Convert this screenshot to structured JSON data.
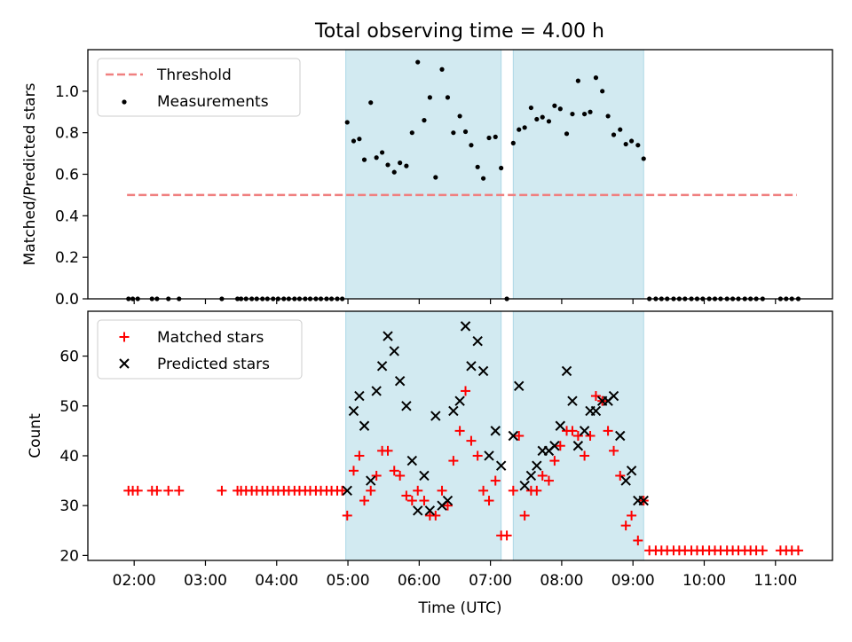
{
  "title": "Total observing time = 4.00 h",
  "colors": {
    "threshold": "#f08080",
    "measurements": "#000000",
    "matched": "#ff0000",
    "predicted": "#000000",
    "shade": "#add8e6"
  },
  "chart_data": [
    {
      "type": "scatter",
      "ylabel": "Matched/Predicted stars",
      "ylim": [
        0,
        1.2
      ],
      "yticks": [
        0.0,
        0.2,
        0.4,
        0.6,
        0.8,
        1.0
      ],
      "ytick_labels": [
        "0.0",
        "0.2",
        "0.4",
        "0.6",
        "0.8",
        "1.0"
      ],
      "xlim_hours": [
        1.35,
        11.8
      ],
      "shaded_intervals_hours": [
        [
          4.97,
          7.15
        ],
        [
          7.32,
          9.15
        ]
      ],
      "legend": {
        "placement": "upper-left",
        "entries": [
          "Threshold",
          "Measurements"
        ]
      },
      "series": [
        {
          "name": "Threshold",
          "kind": "dashed-line",
          "x_hours": [
            1.9,
            11.3
          ],
          "values": [
            0.5,
            0.5
          ]
        },
        {
          "name": "Measurements",
          "kind": "dots",
          "points": [
            [
              1.92,
              0
            ],
            [
              1.98,
              0
            ],
            [
              2.05,
              0
            ],
            [
              2.25,
              0
            ],
            [
              2.32,
              0
            ],
            [
              2.48,
              0
            ],
            [
              2.63,
              0
            ],
            [
              3.23,
              0
            ],
            [
              3.45,
              0
            ],
            [
              3.5,
              0
            ],
            [
              3.57,
              0
            ],
            [
              3.65,
              0
            ],
            [
              3.72,
              0
            ],
            [
              3.8,
              0
            ],
            [
              3.87,
              0
            ],
            [
              3.95,
              0
            ],
            [
              4.02,
              0
            ],
            [
              4.1,
              0
            ],
            [
              4.17,
              0
            ],
            [
              4.25,
              0
            ],
            [
              4.32,
              0
            ],
            [
              4.4,
              0
            ],
            [
              4.47,
              0
            ],
            [
              4.55,
              0
            ],
            [
              4.62,
              0
            ],
            [
              4.7,
              0
            ],
            [
              4.77,
              0
            ],
            [
              4.85,
              0
            ],
            [
              4.92,
              0
            ],
            [
              4.99,
              0.85
            ],
            [
              5.08,
              0.76
            ],
            [
              5.16,
              0.77
            ],
            [
              5.23,
              0.67
            ],
            [
              5.32,
              0.945
            ],
            [
              5.4,
              0.68
            ],
            [
              5.48,
              0.705
            ],
            [
              5.56,
              0.645
            ],
            [
              5.65,
              0.61
            ],
            [
              5.73,
              0.655
            ],
            [
              5.82,
              0.64
            ],
            [
              5.9,
              0.8
            ],
            [
              5.98,
              1.14
            ],
            [
              6.07,
              0.86
            ],
            [
              6.15,
              0.97
            ],
            [
              6.23,
              0.585
            ],
            [
              6.32,
              1.105
            ],
            [
              6.4,
              0.97
            ],
            [
              6.48,
              0.8
            ],
            [
              6.57,
              0.88
            ],
            [
              6.65,
              0.805
            ],
            [
              6.73,
              0.74
            ],
            [
              6.82,
              0.635
            ],
            [
              6.9,
              0.58
            ],
            [
              6.98,
              0.775
            ],
            [
              7.07,
              0.78
            ],
            [
              7.15,
              0.63
            ],
            [
              7.23,
              0
            ],
            [
              7.32,
              0.75
            ],
            [
              7.4,
              0.815
            ],
            [
              7.48,
              0.825
            ],
            [
              7.57,
              0.92
            ],
            [
              7.65,
              0.865
            ],
            [
              7.73,
              0.875
            ],
            [
              7.82,
              0.855
            ],
            [
              7.9,
              0.93
            ],
            [
              7.98,
              0.915
            ],
            [
              8.07,
              0.795
            ],
            [
              8.15,
              0.89
            ],
            [
              8.23,
              1.05
            ],
            [
              8.32,
              0.89
            ],
            [
              8.4,
              0.9
            ],
            [
              8.48,
              1.065
            ],
            [
              8.57,
              1.0
            ],
            [
              8.65,
              0.88
            ],
            [
              8.73,
              0.79
            ],
            [
              8.82,
              0.815
            ],
            [
              8.9,
              0.745
            ],
            [
              8.98,
              0.76
            ],
            [
              9.07,
              0.74
            ],
            [
              9.15,
              0.675
            ],
            [
              9.23,
              0
            ],
            [
              9.32,
              0
            ],
            [
              9.4,
              0
            ],
            [
              9.48,
              0
            ],
            [
              9.57,
              0
            ],
            [
              9.65,
              0
            ],
            [
              9.73,
              0
            ],
            [
              9.82,
              0
            ],
            [
              9.9,
              0
            ],
            [
              9.98,
              0
            ],
            [
              10.07,
              0
            ],
            [
              10.15,
              0
            ],
            [
              10.23,
              0
            ],
            [
              10.32,
              0
            ],
            [
              10.4,
              0
            ],
            [
              10.48,
              0
            ],
            [
              10.57,
              0
            ],
            [
              10.65,
              0
            ],
            [
              10.73,
              0
            ],
            [
              10.82,
              0
            ],
            [
              11.07,
              0
            ],
            [
              11.15,
              0
            ],
            [
              11.23,
              0
            ],
            [
              11.32,
              0
            ]
          ]
        }
      ]
    },
    {
      "type": "scatter",
      "ylabel": "Count",
      "xlabel": "Time (UTC)",
      "ylim": [
        19,
        69
      ],
      "yticks": [
        20,
        30,
        40,
        50,
        60
      ],
      "ytick_labels": [
        "20",
        "30",
        "40",
        "50",
        "60"
      ],
      "xlim_hours": [
        1.35,
        11.8
      ],
      "xticks_hours": [
        2,
        3,
        4,
        5,
        6,
        7,
        8,
        9,
        10,
        11
      ],
      "xtick_labels": [
        "02:00",
        "03:00",
        "04:00",
        "05:00",
        "06:00",
        "07:00",
        "08:00",
        "09:00",
        "10:00",
        "11:00"
      ],
      "shaded_intervals_hours": [
        [
          4.97,
          7.15
        ],
        [
          7.32,
          9.15
        ]
      ],
      "legend": {
        "placement": "upper-left",
        "entries": [
          "Matched stars",
          "Predicted stars"
        ]
      },
      "series": [
        {
          "name": "Matched stars",
          "marker": "plus",
          "points": [
            [
              1.92,
              33
            ],
            [
              1.98,
              33
            ],
            [
              2.05,
              33
            ],
            [
              2.25,
              33
            ],
            [
              2.32,
              33
            ],
            [
              2.48,
              33
            ],
            [
              2.63,
              33
            ],
            [
              3.23,
              33
            ],
            [
              3.45,
              33
            ],
            [
              3.5,
              33
            ],
            [
              3.57,
              33
            ],
            [
              3.65,
              33
            ],
            [
              3.72,
              33
            ],
            [
              3.8,
              33
            ],
            [
              3.87,
              33
            ],
            [
              3.95,
              33
            ],
            [
              4.02,
              33
            ],
            [
              4.1,
              33
            ],
            [
              4.17,
              33
            ],
            [
              4.25,
              33
            ],
            [
              4.32,
              33
            ],
            [
              4.4,
              33
            ],
            [
              4.47,
              33
            ],
            [
              4.55,
              33
            ],
            [
              4.62,
              33
            ],
            [
              4.7,
              33
            ],
            [
              4.77,
              33
            ],
            [
              4.85,
              33
            ],
            [
              4.92,
              33
            ],
            [
              4.99,
              28
            ],
            [
              5.08,
              37
            ],
            [
              5.16,
              40
            ],
            [
              5.23,
              31
            ],
            [
              5.32,
              33
            ],
            [
              5.4,
              36
            ],
            [
              5.48,
              41
            ],
            [
              5.56,
              41
            ],
            [
              5.65,
              37
            ],
            [
              5.73,
              36
            ],
            [
              5.82,
              32
            ],
            [
              5.9,
              31
            ],
            [
              5.98,
              33
            ],
            [
              6.07,
              31
            ],
            [
              6.15,
              28
            ],
            [
              6.23,
              28
            ],
            [
              6.32,
              33
            ],
            [
              6.4,
              30
            ],
            [
              6.48,
              39
            ],
            [
              6.57,
              45
            ],
            [
              6.65,
              53
            ],
            [
              6.73,
              43
            ],
            [
              6.82,
              40
            ],
            [
              6.9,
              33
            ],
            [
              6.98,
              31
            ],
            [
              7.07,
              35
            ],
            [
              7.15,
              24
            ],
            [
              7.23,
              24
            ],
            [
              7.32,
              33
            ],
            [
              7.4,
              44
            ],
            [
              7.48,
              28
            ],
            [
              7.57,
              33
            ],
            [
              7.65,
              33
            ],
            [
              7.73,
              36
            ],
            [
              7.82,
              35
            ],
            [
              7.9,
              39
            ],
            [
              7.98,
              42
            ],
            [
              8.07,
              45
            ],
            [
              8.15,
              45
            ],
            [
              8.23,
              44
            ],
            [
              8.32,
              40
            ],
            [
              8.4,
              44
            ],
            [
              8.48,
              52
            ],
            [
              8.57,
              51
            ],
            [
              8.65,
              45
            ],
            [
              8.73,
              41
            ],
            [
              8.82,
              36
            ],
            [
              8.9,
              26
            ],
            [
              8.98,
              28
            ],
            [
              9.07,
              23
            ],
            [
              9.15,
              31
            ],
            [
              9.23,
              21
            ],
            [
              9.32,
              21
            ],
            [
              9.4,
              21
            ],
            [
              9.48,
              21
            ],
            [
              9.57,
              21
            ],
            [
              9.65,
              21
            ],
            [
              9.73,
              21
            ],
            [
              9.82,
              21
            ],
            [
              9.9,
              21
            ],
            [
              9.98,
              21
            ],
            [
              10.07,
              21
            ],
            [
              10.15,
              21
            ],
            [
              10.23,
              21
            ],
            [
              10.32,
              21
            ],
            [
              10.4,
              21
            ],
            [
              10.48,
              21
            ],
            [
              10.57,
              21
            ],
            [
              10.65,
              21
            ],
            [
              10.73,
              21
            ],
            [
              10.82,
              21
            ],
            [
              11.07,
              21
            ],
            [
              11.15,
              21
            ],
            [
              11.23,
              21
            ],
            [
              11.32,
              21
            ]
          ]
        },
        {
          "name": "Predicted stars",
          "marker": "cross",
          "points": [
            [
              4.99,
              33
            ],
            [
              5.08,
              49
            ],
            [
              5.16,
              52
            ],
            [
              5.23,
              46
            ],
            [
              5.32,
              35
            ],
            [
              5.4,
              53
            ],
            [
              5.48,
              58
            ],
            [
              5.56,
              64
            ],
            [
              5.65,
              61
            ],
            [
              5.73,
              55
            ],
            [
              5.82,
              50
            ],
            [
              5.9,
              39
            ],
            [
              5.98,
              29
            ],
            [
              6.07,
              36
            ],
            [
              6.15,
              29
            ],
            [
              6.23,
              48
            ],
            [
              6.32,
              30
            ],
            [
              6.4,
              31
            ],
            [
              6.48,
              49
            ],
            [
              6.57,
              51
            ],
            [
              6.65,
              66
            ],
            [
              6.73,
              58
            ],
            [
              6.82,
              63
            ],
            [
              6.9,
              57
            ],
            [
              6.98,
              40
            ],
            [
              7.07,
              45
            ],
            [
              7.15,
              38
            ],
            [
              7.32,
              44
            ],
            [
              7.4,
              54
            ],
            [
              7.48,
              34
            ],
            [
              7.57,
              36
            ],
            [
              7.65,
              38
            ],
            [
              7.73,
              41
            ],
            [
              7.82,
              41
            ],
            [
              7.9,
              42
            ],
            [
              7.98,
              46
            ],
            [
              8.07,
              57
            ],
            [
              8.15,
              51
            ],
            [
              8.23,
              42
            ],
            [
              8.32,
              45
            ],
            [
              8.4,
              49
            ],
            [
              8.48,
              49
            ],
            [
              8.57,
              51
            ],
            [
              8.65,
              51
            ],
            [
              8.73,
              52
            ],
            [
              8.82,
              44
            ],
            [
              8.9,
              35
            ],
            [
              8.98,
              37
            ],
            [
              9.07,
              31
            ],
            [
              9.15,
              31
            ]
          ]
        }
      ]
    }
  ]
}
